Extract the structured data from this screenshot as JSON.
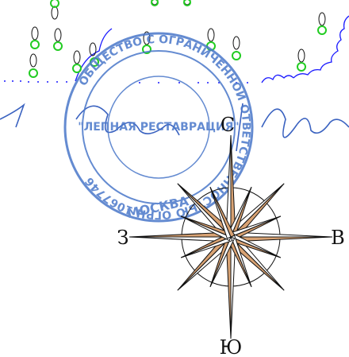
{
  "compass": {
    "north": "С",
    "south": "Ю",
    "east": "В",
    "west": "З",
    "ray_fill": "#d8a273",
    "ray_stroke": "#111111"
  },
  "stamp": {
    "color": "#4a77c9",
    "ring_text": "ОБЩЕСТВО С ОГРАНИЧЕННОЙ ОТВЕТСТВЕННОСТЬЮ ОГРН 1067746",
    "center_text": "\"ЛЕПНАЯ РЕСТАВРАЦИЯ\"",
    "city": "МОСКВА"
  },
  "drawing": {
    "line_color": "#1a1aff",
    "marker_color": "#22cc22"
  }
}
